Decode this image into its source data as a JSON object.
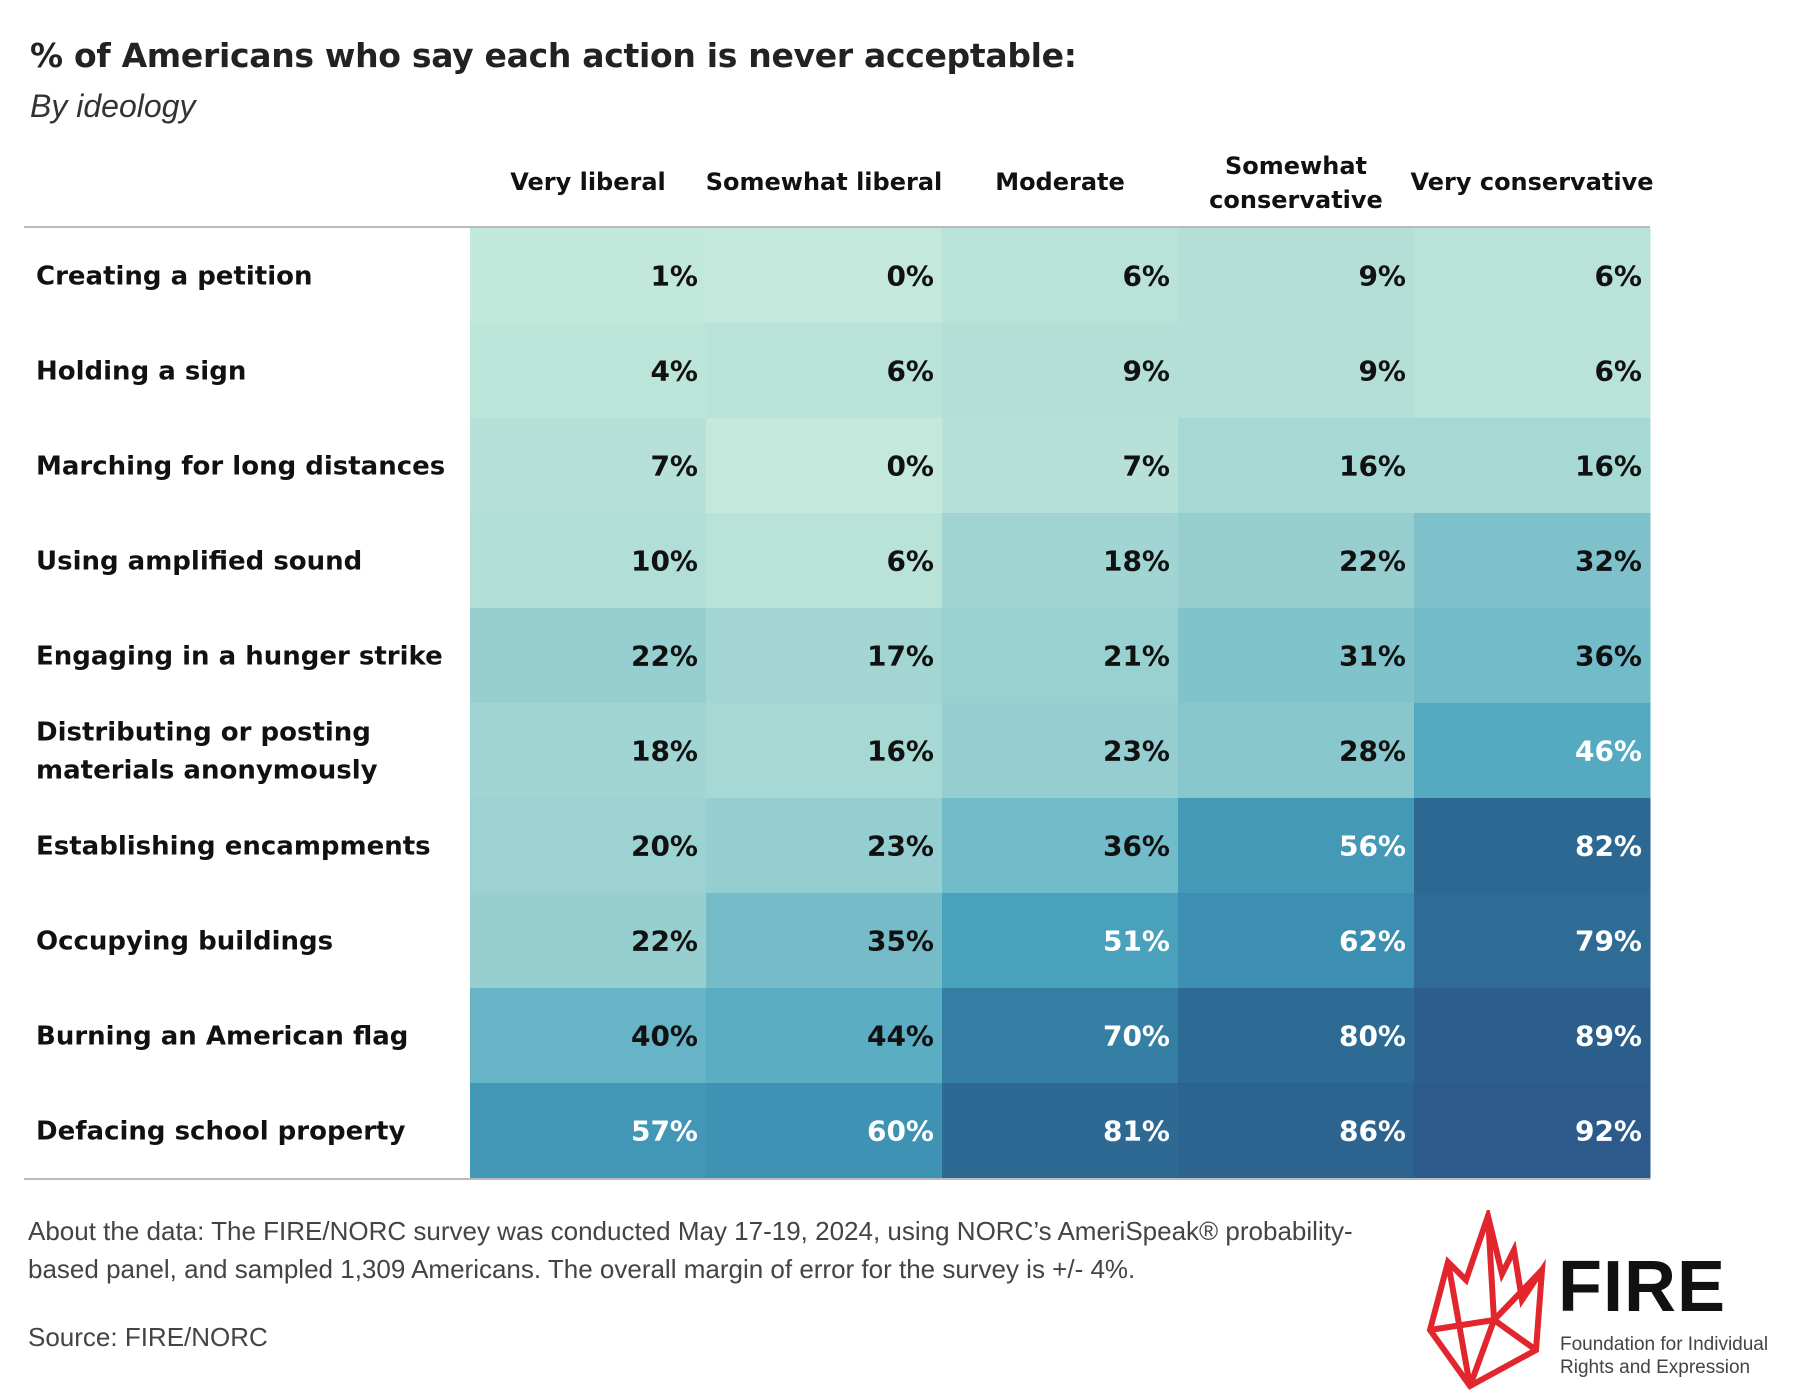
{
  "title": "% of Americans who say each action is never acceptable:",
  "subtitle": "By ideology",
  "chart_data": {
    "type": "heatmap",
    "columns": [
      [
        "Very liberal"
      ],
      [
        "Somewhat liberal"
      ],
      [
        "Moderate"
      ],
      [
        "Somewhat",
        "conservative"
      ],
      [
        "Very conservative"
      ]
    ],
    "rows": [
      {
        "label": [
          "Creating a petition"
        ],
        "values": [
          1,
          0,
          6,
          9,
          6
        ]
      },
      {
        "label": [
          "Holding a sign"
        ],
        "values": [
          4,
          6,
          9,
          9,
          6
        ]
      },
      {
        "label": [
          "Marching for long distances"
        ],
        "values": [
          7,
          0,
          7,
          16,
          16
        ]
      },
      {
        "label": [
          "Using amplified sound"
        ],
        "values": [
          10,
          6,
          18,
          22,
          32
        ]
      },
      {
        "label": [
          "Engaging in a hunger strike"
        ],
        "values": [
          22,
          17,
          21,
          31,
          36
        ]
      },
      {
        "label": [
          "Distributing or posting",
          "materials anonymously"
        ],
        "values": [
          18,
          16,
          23,
          28,
          46
        ]
      },
      {
        "label": [
          "Establishing encampments"
        ],
        "values": [
          20,
          23,
          36,
          56,
          82
        ]
      },
      {
        "label": [
          "Occupying buildings"
        ],
        "values": [
          22,
          35,
          51,
          62,
          79
        ]
      },
      {
        "label": [
          "Burning an American flag"
        ],
        "values": [
          40,
          44,
          70,
          80,
          89
        ]
      },
      {
        "label": [
          "Defacing school property"
        ],
        "values": [
          57,
          60,
          81,
          86,
          92
        ]
      }
    ],
    "value_suffix": "%",
    "color_scale": [
      "#c4e9dc",
      "#a6d8d4",
      "#7fc2cb",
      "#4fa7bf",
      "#3a8db0",
      "#2e6c95",
      "#2b5687"
    ],
    "light_text_threshold": 45
  },
  "footer": {
    "about": "About the data: The FIRE/NORC survey was conducted May 17-19, 2024, using NORC’s AmeriSpeak® probability-based panel, and sampled 1,309 Americans. The overall margin of error for the survey is +/- 4%.",
    "source": "Source: FIRE/NORC"
  },
  "logo": {
    "name": "FIRE",
    "tagline_1": "Foundation for Individual",
    "tagline_2": "Rights and Expression",
    "color": "#e1262d"
  }
}
